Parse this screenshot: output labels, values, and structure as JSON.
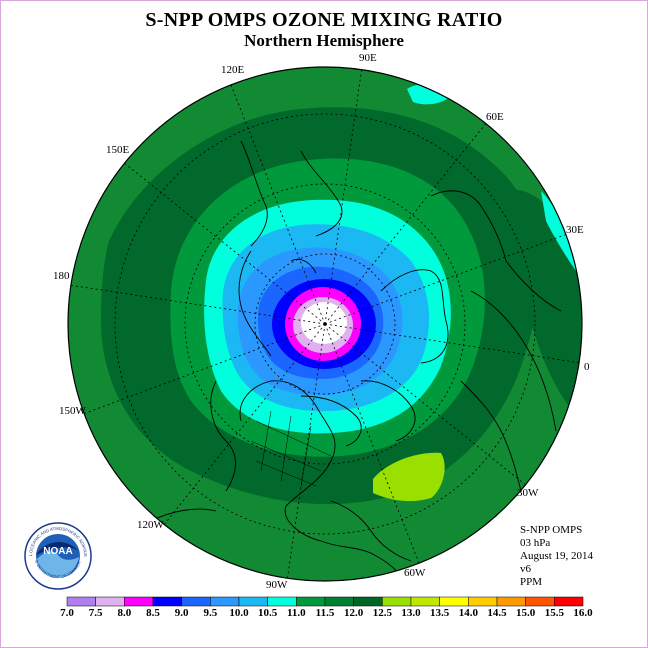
{
  "title": "S-NPP OMPS OZONE MIXING RATIO",
  "subtitle": "Northern Hemisphere",
  "longitude_labels": [
    "90E",
    "60E",
    "30E",
    "0",
    "30W",
    "60W",
    "90W",
    "120W",
    "150W",
    "180",
    "150E",
    "120E"
  ],
  "info": {
    "line1": "S-NPP OMPS",
    "line2": "03 hPa",
    "line3": "August 19, 2014",
    "line4": "v6",
    "line5": "PPM"
  },
  "logo": {
    "text": "NOAA",
    "ring_text": "NATIONAL OCEANIC AND ATMOSPHERIC ADMINISTRATION",
    "bottom_text": "U.S. DEPARTMENT OF COMMERCE"
  },
  "colorbar": {
    "ticks": [
      "7.0",
      "7.5",
      "8.0",
      "8.5",
      "9.0",
      "9.5",
      "10.0",
      "10.5",
      "11.0",
      "11.5",
      "12.0",
      "12.5",
      "13.0",
      "13.5",
      "14.0",
      "14.5",
      "15.0",
      "15.5",
      "16.0"
    ],
    "colors": [
      "#b080f0",
      "#e0b0f0",
      "#ff00ff",
      "#0000ff",
      "#1a66ff",
      "#2b98ff",
      "#1cb8f4",
      "#00ffdd",
      "#009a3c",
      "#008034",
      "#006628",
      "#99e000",
      "#bfe800",
      "#ffff00",
      "#ffcc00",
      "#ff9900",
      "#ff5500",
      "#ff0000",
      "#993300"
    ]
  },
  "map_colors": {
    "outer_green": "#128a34",
    "dark_green": "#00692b",
    "mid_green": "#009a3c",
    "cyan": "#00ffdd",
    "light_blue": "#1cb8f4",
    "sky_blue": "#2b98ff",
    "blue": "#1a66ff",
    "deep_blue": "#0000ff",
    "magenta": "#ff00ff",
    "lavender": "#e0b0f0",
    "white": "#ffffff",
    "lime": "#99e000"
  }
}
